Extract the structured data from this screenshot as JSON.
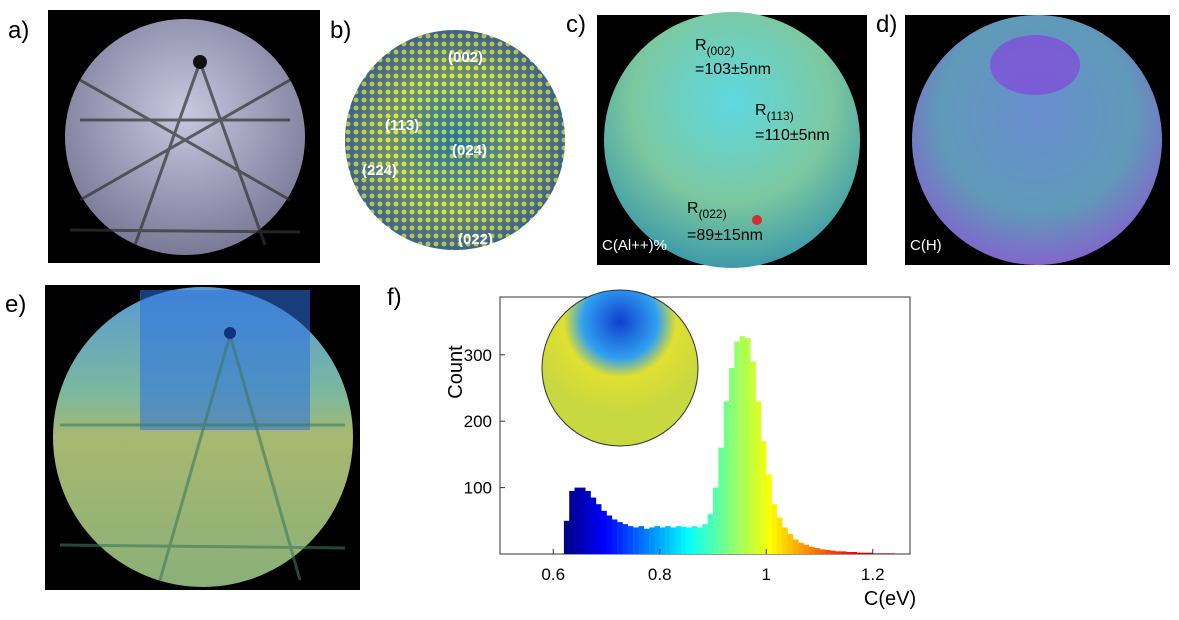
{
  "panels": [
    {
      "label": "a)"
    },
    {
      "label": "b)",
      "annotations": [
        "(002)",
        "(113)",
        "(024)",
        "(224)",
        "(022)"
      ]
    },
    {
      "label": "c)",
      "annotations": [
        {
          "symbol": "R",
          "subscript": "(002)",
          "text": "=103±5nm"
        },
        {
          "symbol": "R",
          "subscript": "(113)",
          "text": "=110±5nm"
        },
        {
          "symbol": "R",
          "subscript": "(022)",
          "text": "=89±15nm"
        }
      ],
      "caption": "C(Al++)%"
    },
    {
      "label": "d)",
      "caption": "C(H)"
    },
    {
      "label": "e)"
    },
    {
      "label": "f)"
    }
  ],
  "chart_data": {
    "type": "histogram",
    "x_label": "C(eV)",
    "y_label": "Count",
    "colormap": "jet",
    "bins": [
      0.62,
      0.63,
      0.64,
      0.65,
      0.66,
      0.67,
      0.68,
      0.69,
      0.7,
      0.71,
      0.72,
      0.73,
      0.74,
      0.75,
      0.76,
      0.77,
      0.78,
      0.79,
      0.8,
      0.81,
      0.82,
      0.83,
      0.84,
      0.85,
      0.86,
      0.87,
      0.88,
      0.89,
      0.9,
      0.91,
      0.92,
      0.93,
      0.94,
      0.95,
      0.96,
      0.97,
      0.98,
      0.99,
      1.0,
      1.01,
      1.02,
      1.03,
      1.04,
      1.05,
      1.06,
      1.07,
      1.08,
      1.09,
      1.1,
      1.11,
      1.12,
      1.13,
      1.14,
      1.15,
      1.16,
      1.17,
      1.18,
      1.19,
      1.2,
      1.21,
      1.22,
      1.23,
      1.24
    ],
    "values": [
      50,
      95,
      100,
      100,
      95,
      85,
      75,
      65,
      58,
      52,
      48,
      45,
      42,
      40,
      42,
      38,
      40,
      42,
      40,
      42,
      40,
      42,
      41,
      40,
      42,
      40,
      45,
      60,
      100,
      160,
      230,
      280,
      320,
      328,
      325,
      290,
      230,
      170,
      120,
      75,
      55,
      40,
      30,
      22,
      17,
      14,
      11,
      9,
      7,
      6,
      5,
      4,
      4,
      3,
      3,
      2,
      2,
      2,
      1,
      1,
      1,
      1
    ],
    "xlim": [
      0.5,
      1.27
    ],
    "ylim": [
      0,
      387
    ],
    "xticks": [
      0.6,
      0.8,
      1,
      1.2
    ],
    "yticks": [
      100,
      200,
      300
    ]
  }
}
